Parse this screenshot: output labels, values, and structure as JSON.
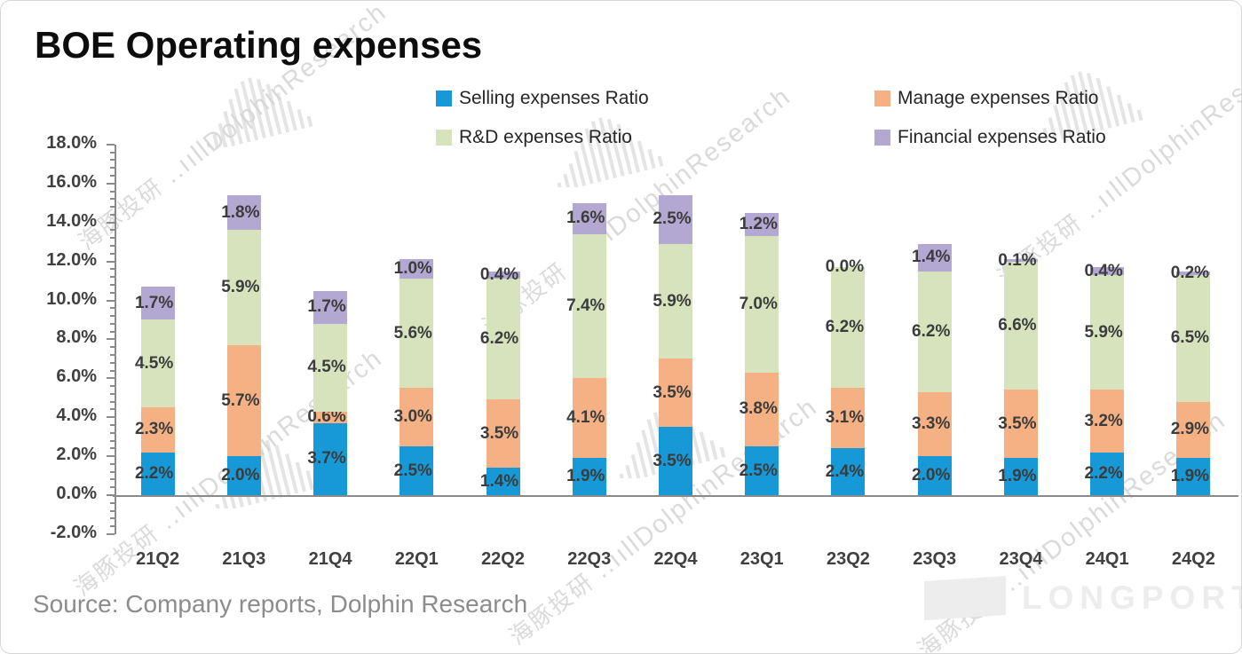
{
  "header": {
    "title": "BOE Operating expenses"
  },
  "footer": {
    "source": "Source: Company reports, Dolphin Research"
  },
  "watermark": {
    "text_cn": "海豚投研",
    "text_en": "DolphinResearch",
    "combined": "海豚投研 ..ııllDolphinResearch",
    "logo": "LONGPORT"
  },
  "colors": {
    "selling_blue": "#1699D6",
    "manage_orange": "#F5B183",
    "rnd_green": "#D7E3BC",
    "financial_purple": "#B3A8D1",
    "axis": "#8a8a8a",
    "data_label": "#3c3c3c",
    "source_text": "#8c8c8c"
  },
  "chart_data": {
    "type": "bar",
    "stacked": true,
    "title": "BOE Operating expenses",
    "xlabel": "",
    "ylabel": "",
    "ylim": [
      -2.0,
      18.0
    ],
    "y_tick_step": 2.0,
    "y_minor_tick_step": 0.4,
    "y_tick_labels": [
      "18.0%",
      "16.0%",
      "14.0%",
      "12.0%",
      "10.0%",
      "8.0%",
      "6.0%",
      "4.0%",
      "2.0%",
      "0.0%",
      "-2.0%"
    ],
    "grid": false,
    "legend_position": "top",
    "data_labels": true,
    "categories": [
      "21Q2",
      "21Q3",
      "21Q4",
      "22Q1",
      "22Q2",
      "22Q3",
      "22Q4",
      "23Q1",
      "23Q2",
      "23Q3",
      "23Q4",
      "24Q1",
      "24Q2"
    ],
    "series": [
      {
        "name": "Selling expenses Ratio",
        "color": "#1699D6",
        "values": [
          2.2,
          2.0,
          3.7,
          2.5,
          1.4,
          1.9,
          3.5,
          2.5,
          2.4,
          2.0,
          1.9,
          2.2,
          1.9
        ]
      },
      {
        "name": "Manage expenses Ratio",
        "color": "#F5B183",
        "values": [
          2.3,
          5.7,
          0.6,
          3.0,
          3.5,
          4.1,
          3.5,
          3.8,
          3.1,
          3.3,
          3.5,
          3.2,
          2.9
        ]
      },
      {
        "name": "R&D expenses Ratio",
        "color": "#D7E3BC",
        "values": [
          4.5,
          5.9,
          4.5,
          5.6,
          6.2,
          7.4,
          5.9,
          7.0,
          6.2,
          6.2,
          6.6,
          5.9,
          6.5
        ]
      },
      {
        "name": "Financial expenses Ratio",
        "color": "#B3A8D1",
        "values": [
          1.7,
          1.8,
          1.7,
          1.0,
          0.4,
          1.6,
          2.5,
          1.2,
          0.0,
          1.4,
          0.1,
          0.4,
          0.2
        ]
      }
    ]
  }
}
